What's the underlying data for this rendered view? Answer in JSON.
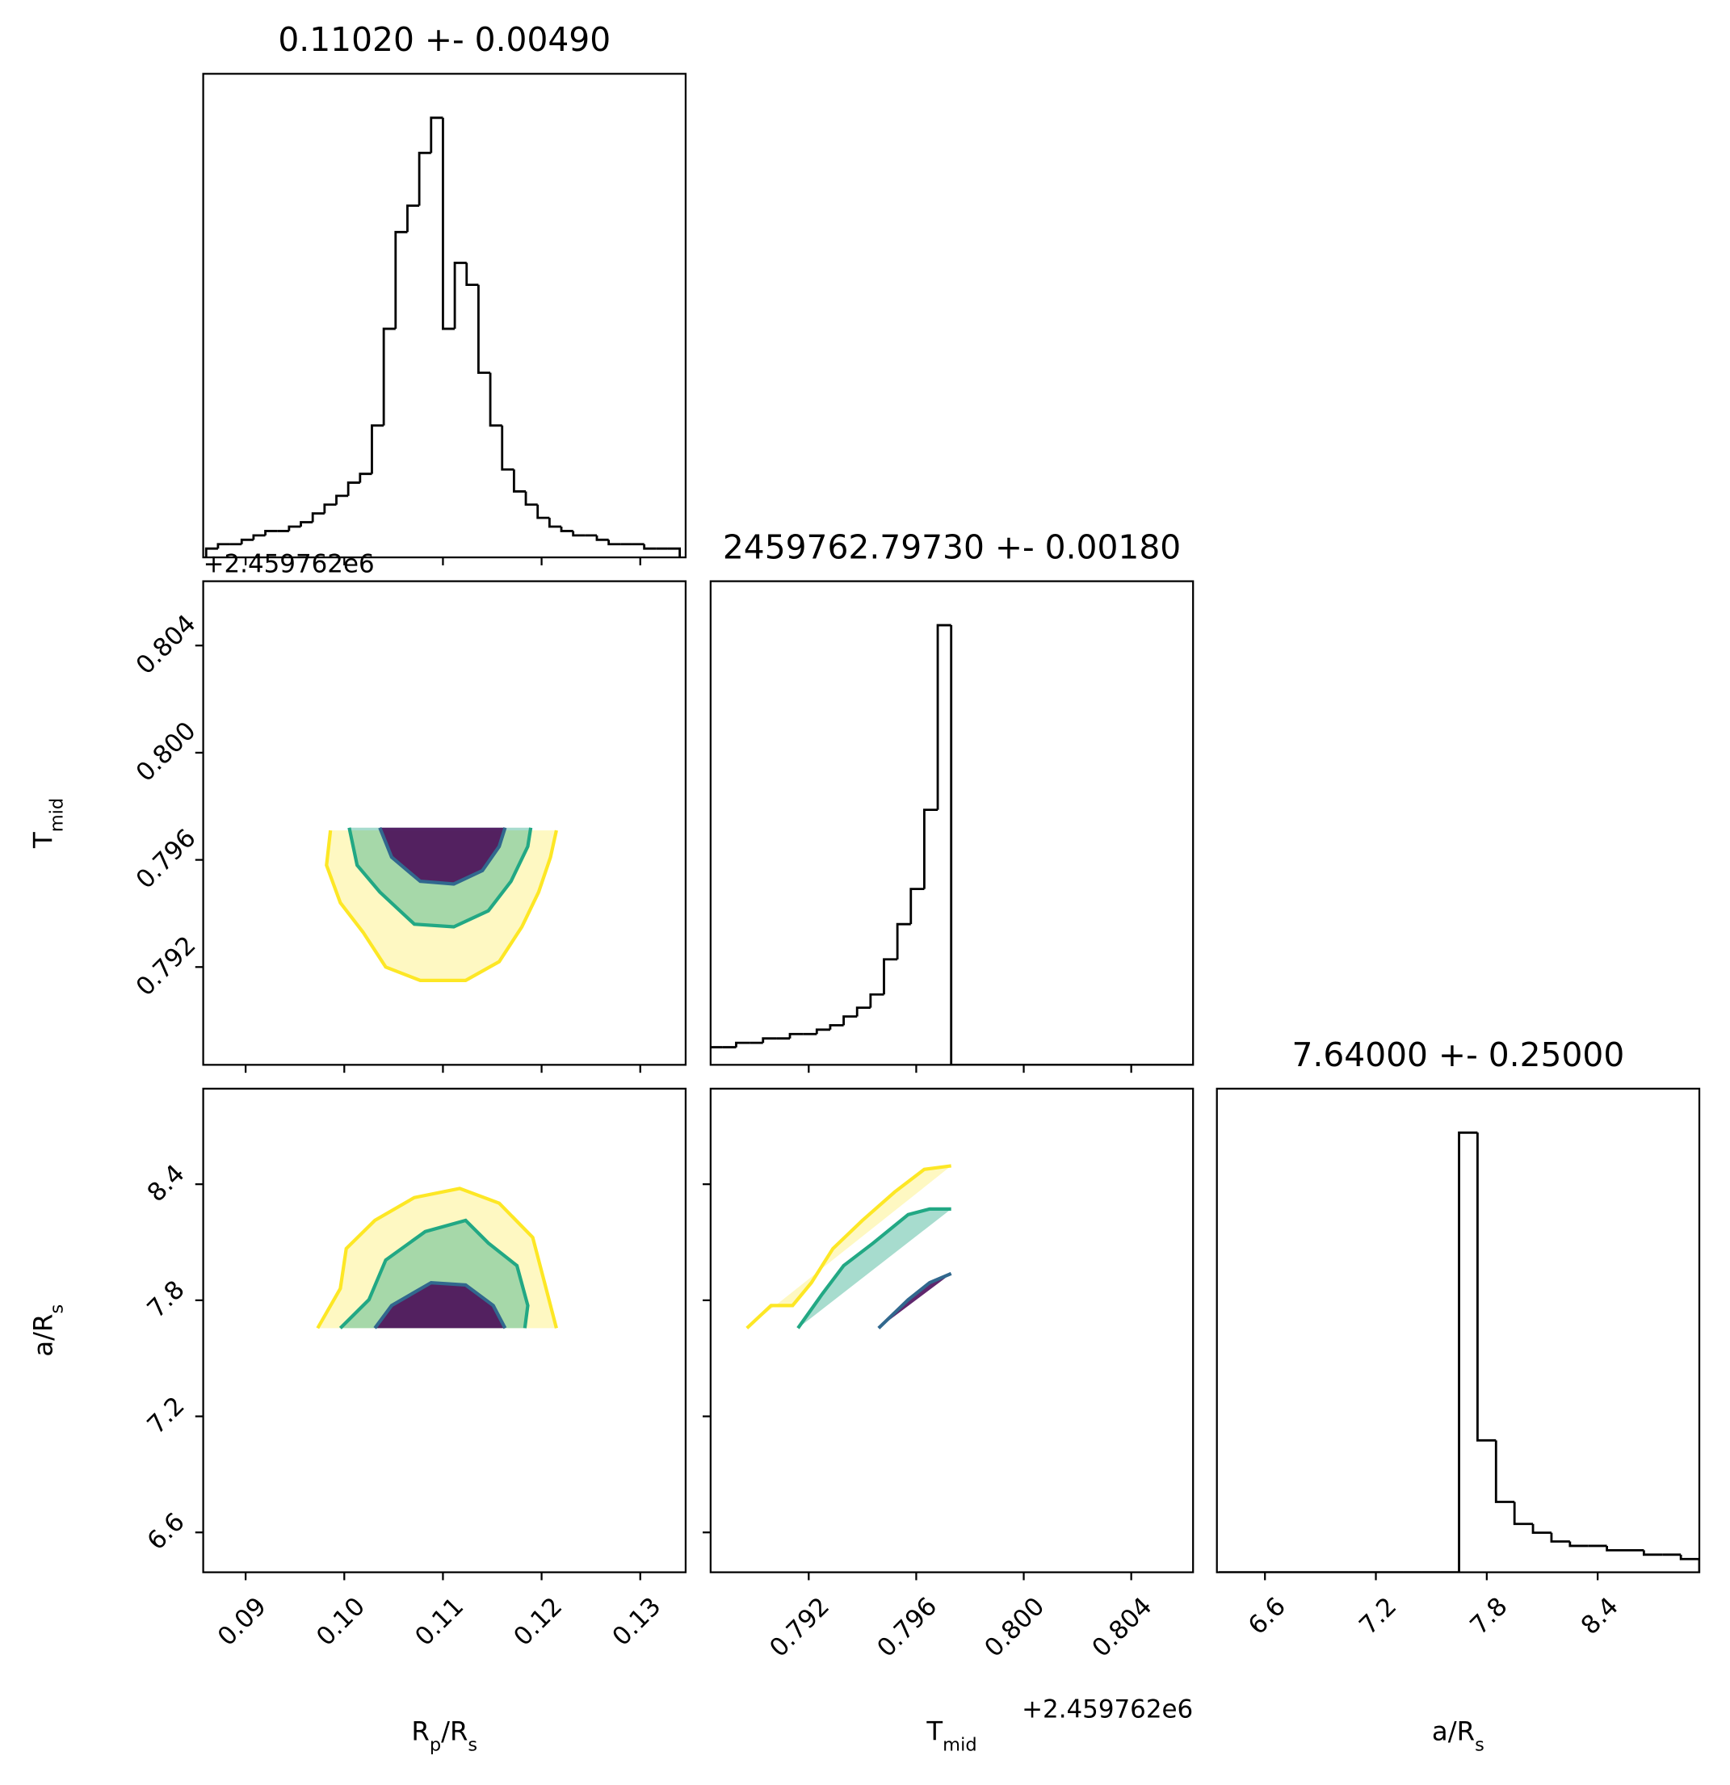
{
  "chart_data": [
    {
      "type": "histogram",
      "title": "0.11020 +- 0.00490",
      "color": "#000000",
      "bins": [
        0.086,
        0.0872,
        0.0884,
        0.0896,
        0.0908,
        0.092,
        0.0932,
        0.0944,
        0.0956,
        0.0968,
        0.098,
        0.0992,
        0.1004,
        0.1016,
        0.1028,
        0.104,
        0.1052,
        0.1064,
        0.1076,
        0.1088,
        0.11,
        0.1112,
        0.1124,
        0.1136,
        0.1148,
        0.116,
        0.1172,
        0.1184,
        0.1196,
        0.1208,
        0.122,
        0.1232,
        0.1244,
        0.1256,
        0.1268,
        0.128,
        0.1292,
        0.1304,
        0.1316,
        0.1328,
        0.134
      ],
      "counts": [
        2,
        3,
        3,
        4,
        5,
        6,
        6,
        7,
        8,
        10,
        12,
        14,
        17,
        19,
        30,
        52,
        74,
        80,
        92,
        100,
        52,
        67,
        62,
        42,
        30,
        20,
        15,
        12,
        9,
        7,
        6,
        5,
        5,
        4,
        3,
        3,
        3,
        2,
        2,
        2
      ],
      "xlim": [
        0.0857,
        0.1346
      ],
      "ylim": [
        0,
        110
      ],
      "xticks": [
        0.09,
        {
          "value": 0.1,
          "label": "0.10"
        },
        0.11,
        0.12,
        0.13
      ]
    },
    {
      "type": "contour",
      "ylabel": [
        "T",
        "mid"
      ],
      "offset_text": "+2.459762e6",
      "xlim": [
        0.0857,
        0.1346
      ],
      "ylim": [
        0.78835,
        0.8064
      ],
      "xticks": [
        0.09,
        {
          "value": 0.1,
          "label": "0.10"
        },
        0.11,
        0.12,
        0.13
      ],
      "yticks": [
        0.792,
        0.796,
        {
          "value": 0.8,
          "label": "0.800"
        },
        0.804
      ],
      "contours": [
        {
          "color": "#fde725",
          "x": [
            0.0986,
            0.0982,
            0.0996,
            0.1019,
            0.1042,
            0.1077,
            0.1123,
            0.1157,
            0.118,
            0.1197,
            0.1209,
            0.1215
          ],
          "y": [
            0.7971,
            0.7958,
            0.7944,
            0.7933,
            0.792,
            0.7915,
            0.7915,
            0.7922,
            0.7935,
            0.7948,
            0.7961,
            0.7971
          ]
        },
        {
          "color": "#22a884",
          "x": [
            0.1005,
            0.1013,
            0.1036,
            0.1071,
            0.1111,
            0.1146,
            0.1169,
            0.1186,
            0.1189
          ],
          "y": [
            0.7972,
            0.7958,
            0.7948,
            0.7936,
            0.7935,
            0.7941,
            0.7952,
            0.7965,
            0.7972
          ]
        },
        {
          "color": "#31688e",
          "x": [
            0.1036,
            0.1048,
            0.1077,
            0.1111,
            0.114,
            0.1157,
            0.1163
          ],
          "y": [
            0.7972,
            0.7961,
            0.7952,
            0.7951,
            0.7956,
            0.7965,
            0.7972
          ]
        }
      ]
    },
    {
      "type": "histogram",
      "title": "2459762.79730 +- 0.00180",
      "color": "#000000",
      "bins": [
        0.7883,
        0.7888,
        0.7893,
        0.7898,
        0.7903,
        0.7908,
        0.7913,
        0.7918,
        0.7923,
        0.7928,
        0.7933,
        0.7938,
        0.7943,
        0.7948,
        0.7953,
        0.7958,
        0.7963,
        0.7968,
        0.7973,
        0.7978,
        0.7983,
        0.7988,
        0.7993,
        0.7998,
        0.8003,
        0.8008,
        0.8013,
        0.8018,
        0.8023,
        0.8028,
        0.8033,
        0.8038,
        0.8043,
        0.8048,
        0.8053,
        0.8058,
        0.8063
      ],
      "counts": [
        4,
        4,
        5,
        5,
        6,
        6,
        7,
        7,
        8,
        9,
        11,
        13,
        16,
        24,
        32,
        40,
        58,
        100,
        0,
        0,
        0,
        0,
        0,
        0,
        0,
        0,
        0,
        0,
        0,
        0,
        0,
        0,
        0,
        0,
        0,
        0
      ],
      "xlim": [
        0.78835,
        0.8063
      ],
      "ylim": [
        0,
        110
      ],
      "xticks": [
        0.792,
        0.796,
        {
          "value": 0.8,
          "label": "0.800"
        },
        0.804
      ]
    },
    {
      "type": "contour",
      "xlabel": [
        "R",
        "p",
        "/R",
        "s"
      ],
      "ylabel": [
        "a/R",
        "s"
      ],
      "xlim": [
        0.0857,
        0.1346
      ],
      "ylim": [
        6.394,
        8.894
      ],
      "xticks": [
        0.09,
        {
          "value": 0.1,
          "label": "0.10"
        },
        0.11,
        0.12,
        0.13
      ],
      "yticks": [
        6.6,
        7.2,
        7.8,
        8.4
      ],
      "contours": [
        {
          "color": "#fde725",
          "x": [
            0.0973,
            0.0996,
            0.1002,
            0.1031,
            0.1071,
            0.1117,
            0.1157,
            0.1191,
            0.1203,
            0.1215
          ],
          "y": [
            7.656,
            7.861,
            8.067,
            8.213,
            8.331,
            8.378,
            8.302,
            8.125,
            7.891,
            7.656
          ]
        },
        {
          "color": "#22a884",
          "x": [
            0.0996,
            0.1025,
            0.1042,
            0.1082,
            0.1123,
            0.1146,
            0.1175,
            0.1186,
            0.1183
          ],
          "y": [
            7.656,
            7.803,
            8.008,
            8.155,
            8.213,
            8.096,
            7.979,
            7.773,
            7.656
          ]
        },
        {
          "color": "#31688e",
          "x": [
            0.1031,
            0.1048,
            0.1088,
            0.1123,
            0.1151,
            0.1163
          ],
          "y": [
            7.656,
            7.773,
            7.891,
            7.879,
            7.773,
            7.656
          ]
        }
      ]
    },
    {
      "type": "contour",
      "xlabel": [
        "T",
        "mid"
      ],
      "offset_text": "+2.459762e6",
      "xlim": [
        0.78835,
        0.8063
      ],
      "ylim": [
        6.394,
        8.894
      ],
      "xticks": [
        0.792,
        0.796,
        {
          "value": 0.8,
          "label": "0.800"
        },
        0.804
      ],
      "yticks": [
        6.6,
        7.2,
        7.8,
        8.4
      ],
      "contours": [
        {
          "color": "#fde725",
          "x": [
            0.7897,
            0.7906,
            0.7914,
            0.7921,
            0.7929,
            0.794,
            0.7952,
            0.7963,
            0.7973
          ],
          "y": [
            7.656,
            7.773,
            7.773,
            7.891,
            8.067,
            8.213,
            8.36,
            8.477,
            8.495
          ]
        },
        {
          "color": "#22a884",
          "x": [
            0.7916,
            0.7925,
            0.7933,
            0.7944,
            0.7957,
            0.7965,
            0.7973
          ],
          "y": [
            7.656,
            7.832,
            7.979,
            8.096,
            8.243,
            8.272,
            8.272
          ]
        },
        {
          "color": "#31688e",
          "x": [
            0.7946,
            0.7957,
            0.7965,
            0.7973
          ],
          "y": [
            7.656,
            7.803,
            7.891,
            7.938
          ]
        }
      ]
    },
    {
      "type": "histogram",
      "title": "7.64000 +- 0.25000",
      "xlabel": [
        "a/R",
        "s"
      ],
      "color": "#000000",
      "bins": [
        6.35,
        6.45,
        6.55,
        6.65,
        6.75,
        6.85,
        6.95,
        7.05,
        7.15,
        7.25,
        7.35,
        7.45,
        7.55,
        7.65,
        7.75,
        7.85,
        7.95,
        8.05,
        8.15,
        8.25,
        8.35,
        8.45,
        8.55,
        8.65,
        8.75,
        8.85,
        8.95
      ],
      "counts": [
        0,
        0,
        0,
        0,
        0,
        0,
        0,
        0,
        0,
        0,
        0,
        0,
        0,
        100,
        30,
        16,
        11,
        9,
        7,
        6,
        6,
        5,
        5,
        4,
        4,
        3
      ],
      "xlim": [
        6.34,
        8.95
      ],
      "ylim": [
        0,
        110
      ],
      "xticks": [
        6.6,
        7.2,
        7.8,
        8.4
      ]
    }
  ]
}
